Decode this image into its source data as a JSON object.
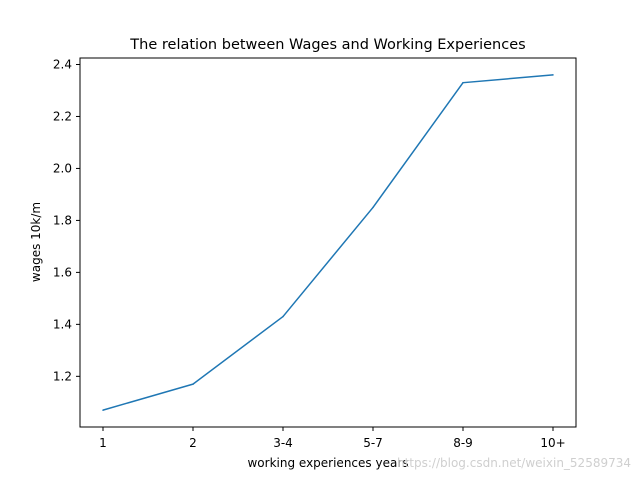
{
  "chart_data": {
    "type": "line",
    "title": "The relation between Wages and Working Experiences",
    "xlabel": "working experiences years",
    "ylabel": "wages 10k/m",
    "categories": [
      "1",
      "2",
      "3-4",
      "5-7",
      "8-9",
      "10+"
    ],
    "series": [
      {
        "values": [
          1.07,
          1.17,
          1.43,
          1.85,
          2.33,
          2.36
        ],
        "color": "#1f77b4"
      }
    ],
    "ylim": [
      1.005,
      2.425
    ],
    "y_ticks": [
      1.2,
      1.4,
      1.6,
      1.8,
      2.0,
      2.2,
      2.4
    ],
    "y_tick_labels": [
      "1.2",
      "1.4",
      "1.6",
      "1.8",
      "2.0",
      "2.2",
      "2.4"
    ],
    "grid": false,
    "legend": "none"
  },
  "watermark": "https://blog.csdn.net/weixin_52589734"
}
